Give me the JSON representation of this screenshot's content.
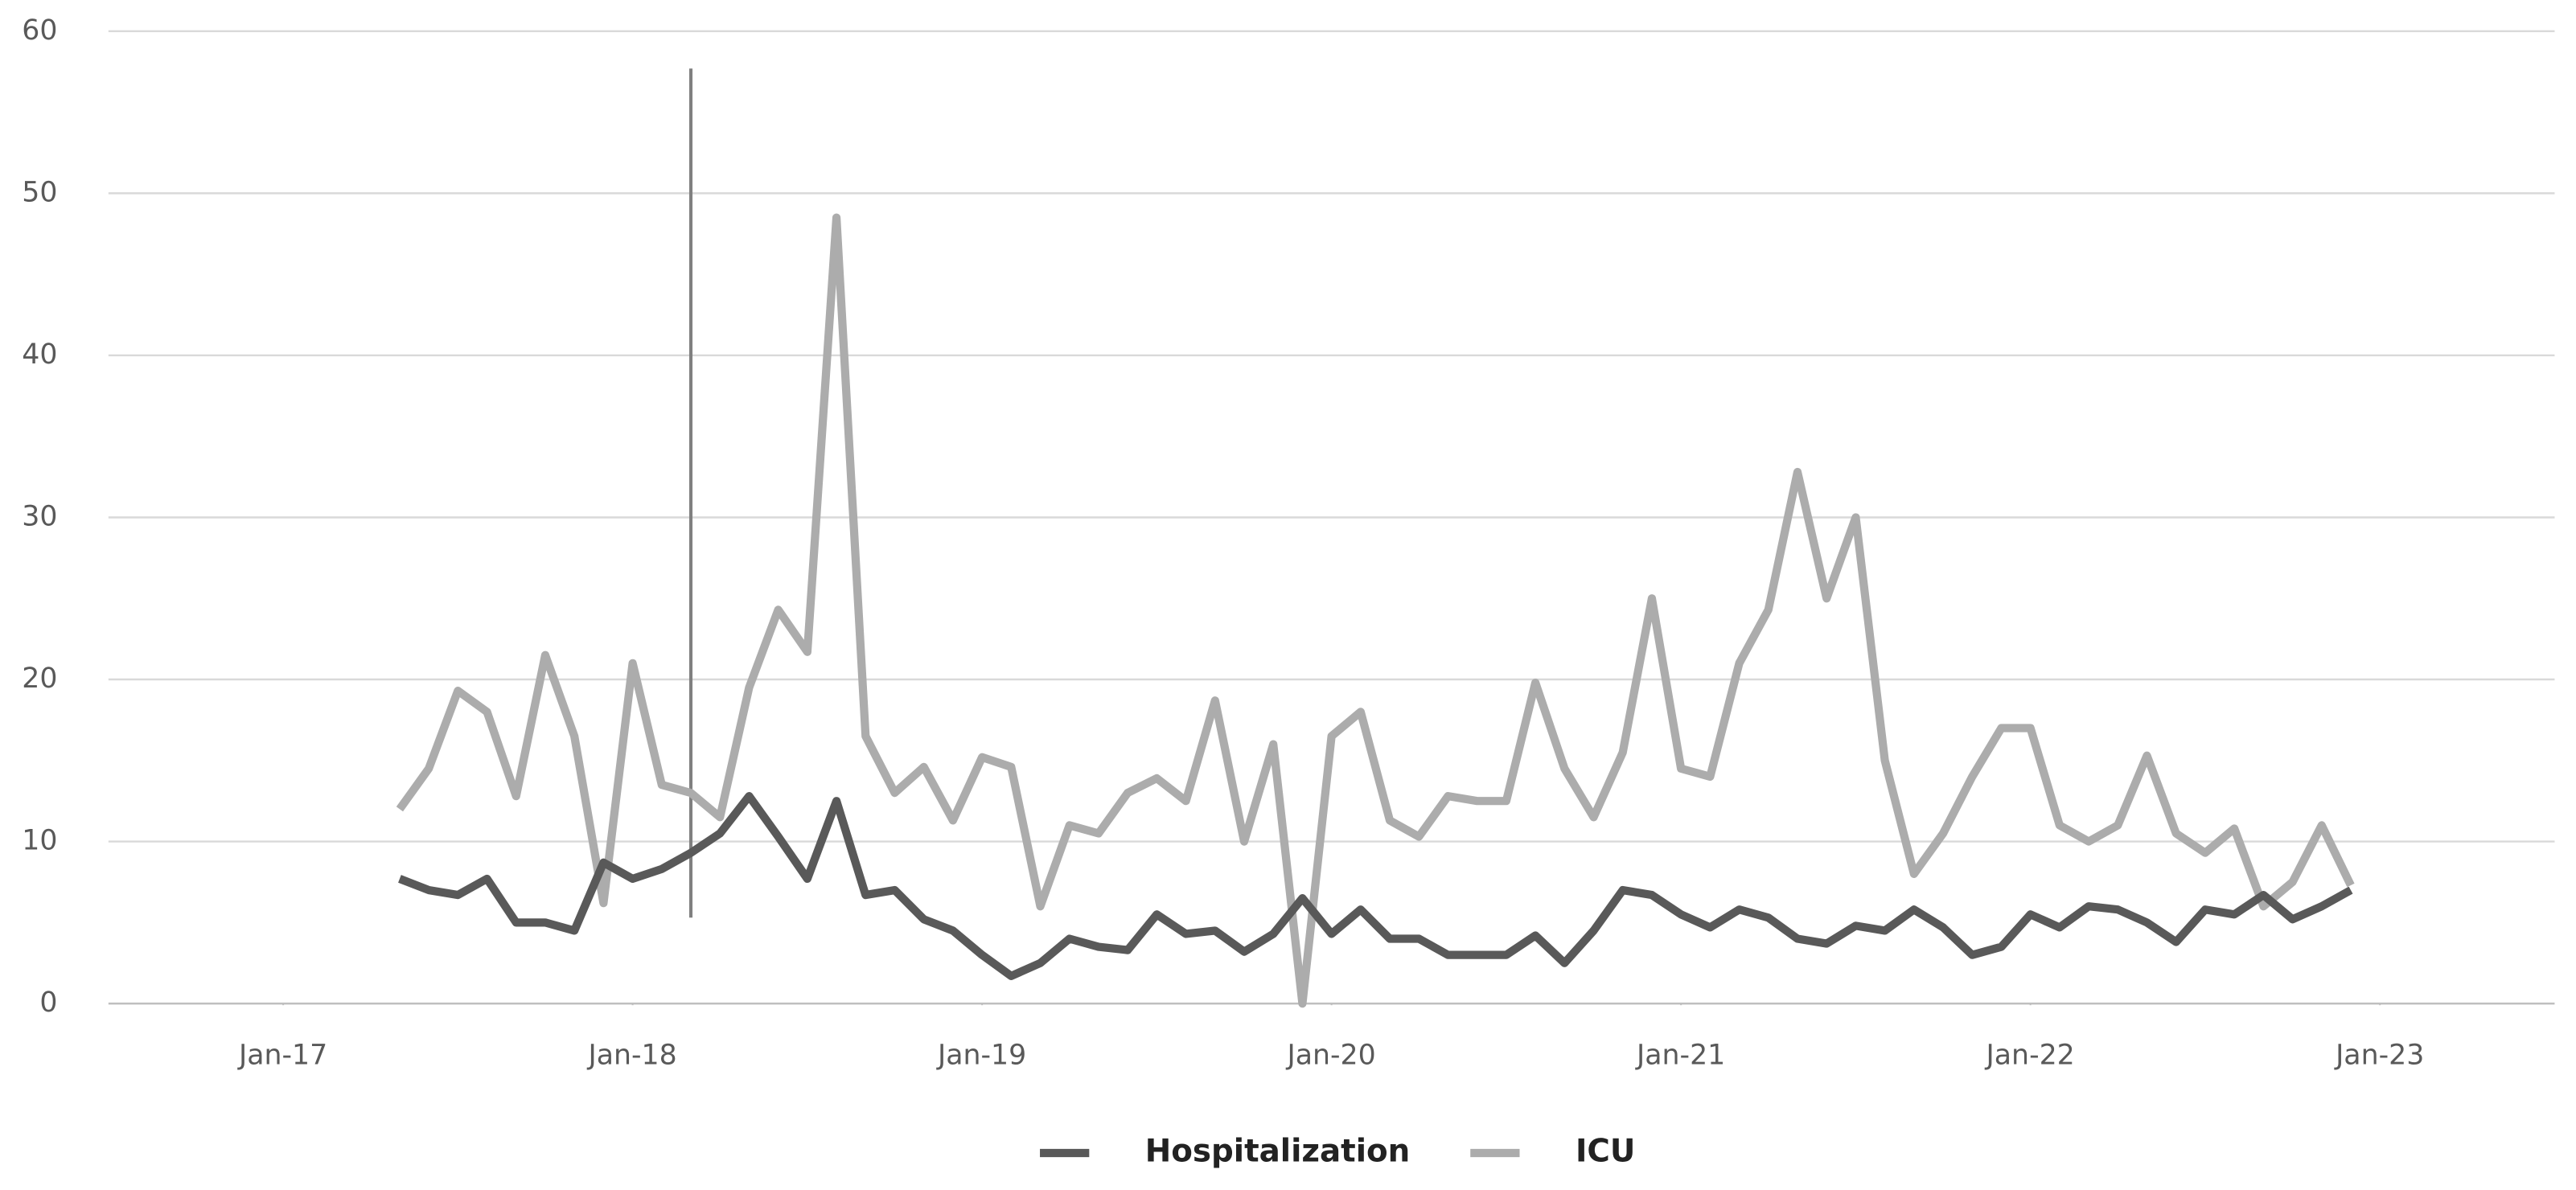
{
  "chart_data": {
    "type": "line",
    "x": [
      "2017-05",
      "2017-06",
      "2017-07",
      "2017-08",
      "2017-09",
      "2017-10",
      "2017-11",
      "2017-12",
      "2018-01",
      "2018-02",
      "2018-03",
      "2018-04",
      "2018-05",
      "2018-06",
      "2018-07",
      "2018-08",
      "2018-09",
      "2018-10",
      "2018-11",
      "2018-12",
      "2019-01",
      "2019-02",
      "2019-03",
      "2019-04",
      "2019-05",
      "2019-06",
      "2019-07",
      "2019-08",
      "2019-09",
      "2019-10",
      "2019-11",
      "2019-12",
      "2020-01",
      "2020-02",
      "2020-03",
      "2020-04",
      "2020-05",
      "2020-06",
      "2020-07",
      "2020-08",
      "2020-09",
      "2020-10",
      "2020-11",
      "2020-12",
      "2021-01",
      "2021-02",
      "2021-03",
      "2021-04",
      "2021-05",
      "2021-06",
      "2021-07",
      "2021-08",
      "2021-09",
      "2021-10",
      "2021-11",
      "2021-12",
      "2022-01",
      "2022-02",
      "2022-03",
      "2022-04",
      "2022-05",
      "2022-06",
      "2022-07",
      "2022-08",
      "2022-09",
      "2022-10",
      "2022-11",
      "2022-12"
    ],
    "series": [
      {
        "name": "Hospitalization",
        "color": "#595959",
        "values": [
          7.7,
          7,
          6.7,
          7.7,
          5,
          5,
          4.5,
          8.7,
          7.7,
          8.3,
          9.3,
          10.5,
          12.8,
          10.3,
          7.7,
          12.5,
          6.7,
          7,
          5.2,
          4.5,
          3,
          1.7,
          2.5,
          4,
          3.5,
          3.3,
          5.5,
          4.3,
          4.5,
          3.2,
          4.3,
          6.5,
          4.3,
          5.8,
          4,
          4,
          3,
          3,
          3,
          4.2,
          2.5,
          4.5,
          7,
          6.7,
          5.5,
          4.7,
          5.8,
          5.3,
          4,
          3.7,
          4.8,
          4.5,
          5.8,
          4.7,
          3,
          3.5,
          5.5,
          4.7,
          6,
          5.8,
          5,
          3.8,
          5.8,
          5.5,
          6.7,
          5.2,
          6,
          7
        ]
      },
      {
        "name": "ICU",
        "color": "#acacac",
        "values": [
          12,
          14.5,
          19.3,
          18,
          12.8,
          21.5,
          16.5,
          6.2,
          21,
          13.5,
          13,
          11.5,
          19.5,
          24.3,
          21.7,
          48.5,
          16.5,
          13,
          14.6,
          11.3,
          15.2,
          14.6,
          6,
          11,
          10.5,
          13,
          13.9,
          12.5,
          18.7,
          10,
          16,
          0,
          16.5,
          18,
          11.3,
          10.3,
          12.8,
          12.5,
          12.5,
          19.8,
          14.5,
          11.5,
          15.5,
          25,
          14.5,
          14,
          21,
          24.3,
          32.8,
          25,
          30,
          15,
          8,
          10.5,
          14,
          17,
          17,
          11,
          10,
          11,
          15.3,
          10.5,
          9.3,
          10.8,
          6,
          7.5,
          11,
          7.3
        ]
      }
    ],
    "xlim": [
      "2016-07",
      "2023-07"
    ],
    "xticks": [
      {
        "value": "2017-01",
        "label": "Jan-17"
      },
      {
        "value": "2018-01",
        "label": "Jan-18"
      },
      {
        "value": "2019-01",
        "label": "Jan-19"
      },
      {
        "value": "2020-01",
        "label": "Jan-20"
      },
      {
        "value": "2021-01",
        "label": "Jan-21"
      },
      {
        "value": "2022-01",
        "label": "Jan-22"
      },
      {
        "value": "2023-01",
        "label": "Jan-23"
      }
    ],
    "ylim": [
      0,
      60
    ],
    "yticks": [
      0,
      10,
      20,
      30,
      40,
      50,
      60
    ],
    "grid": true,
    "legend": "bottom",
    "vline": {
      "x": "2018-03",
      "y": [
        5.3,
        57.7
      ],
      "color": "#808080"
    }
  }
}
